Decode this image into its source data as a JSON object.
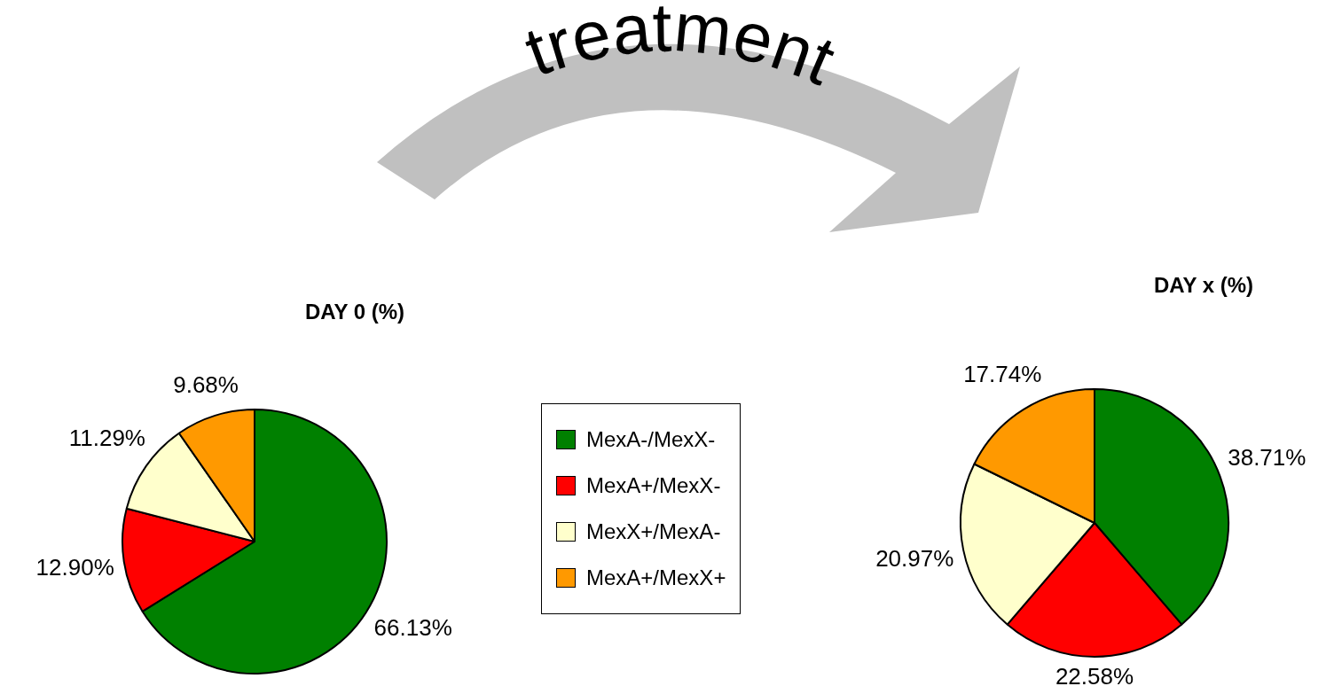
{
  "chart_data": [
    {
      "type": "pie",
      "title": "DAY 0 (%)",
      "categories": [
        "MexA-/MexX-",
        "MexA+/MexX-",
        "MexX+/MexA-",
        "MexA+/MexX+"
      ],
      "values": [
        66.13,
        12.9,
        11.29,
        9.68
      ],
      "colors": [
        "#008000",
        "#ff0000",
        "#ffffcc",
        "#ff9900"
      ],
      "value_labels": [
        "66.13%",
        "12.90%",
        "11.29%",
        "9.68%"
      ],
      "legend": "right",
      "annotations": [
        "treatment"
      ]
    },
    {
      "type": "pie",
      "title": "DAY x (%)",
      "categories": [
        null,
        null,
        null,
        null
      ],
      "values": [
        38.71,
        22.58,
        20.97,
        17.74
      ],
      "colors": [
        "#008000",
        "#ff0000",
        "#ffffcc",
        "#ff9900"
      ],
      "value_labels": [
        "38.71%",
        "22.58%",
        "20.97%",
        "17.74%"
      ]
    }
  ]
}
